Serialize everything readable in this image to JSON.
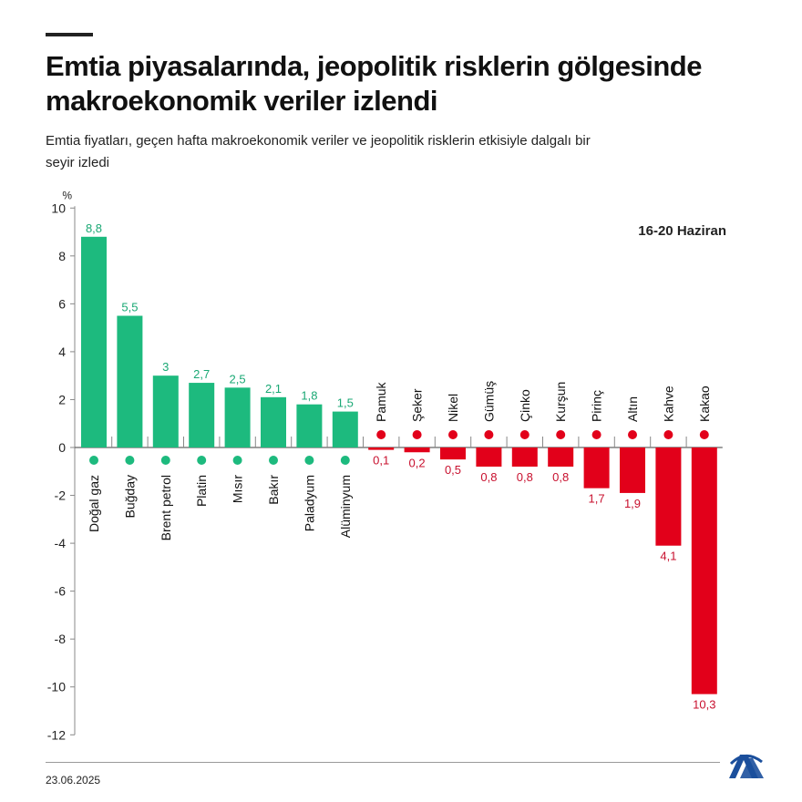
{
  "title": "Emtia piyasalarında, jeopolitik risklerin gölgesinde makroekonomik veriler izlendi",
  "subtitle": "Emtia fiyatları, geçen hafta makroekonomik veriler ve jeopolitik risklerin etkisiyle dalgalı bir seyir izledi",
  "period": "16-20 Haziran",
  "date": "23.06.2025",
  "logo_text": "AA",
  "colors": {
    "positive": "#1dba7e",
    "negative": "#e2001a",
    "positive_label": "#1aa874",
    "negative_label": "#c8102e"
  },
  "chart_data": {
    "type": "bar",
    "ylabel": "%",
    "ylim": [
      -12,
      10
    ],
    "yticks": [
      10,
      8,
      6,
      4,
      2,
      0,
      -2,
      -4,
      -6,
      -8,
      -10,
      -12
    ],
    "grid": false,
    "categories": [
      "Doğal gaz",
      "Buğday",
      "Brent petrol",
      "Platin",
      "Mısır",
      "Bakır",
      "Paladyum",
      "Alüminyum",
      "Pamuk",
      "Şeker",
      "Nikel",
      "Gümüş",
      "Çinko",
      "Kurşun",
      "Pirinç",
      "Altın",
      "Kahve",
      "Kakao"
    ],
    "values": [
      8.8,
      5.5,
      3,
      2.7,
      2.5,
      2.1,
      1.8,
      1.5,
      -0.1,
      -0.2,
      -0.5,
      -0.8,
      -0.8,
      -0.8,
      -1.7,
      -1.9,
      -4.1,
      -10.3
    ],
    "data_labels": [
      "8,8",
      "5,5",
      "3",
      "2,7",
      "2,5",
      "2,1",
      "1,8",
      "1,5",
      "0,1",
      "0,2",
      "0,5",
      "0,8",
      "0,8",
      "0,8",
      "1,7",
      "1,9",
      "4,1",
      "10,3"
    ],
    "icons": [
      "flame-icon",
      "wheat-icon",
      "oil-barrel-icon",
      "metal-bars-icon",
      "corn-icon",
      "metal-bars-icon",
      "metal-bars-icon",
      "metal-bars-icon",
      "cotton-icon",
      "sugar-sack-icon",
      "metal-bars-icon",
      "metal-bars-icon",
      "metal-bars-icon",
      "metal-bars-icon",
      "rice-sack-icon",
      "metal-bars-icon",
      "coffee-bean-icon",
      "cocoa-icon"
    ]
  }
}
